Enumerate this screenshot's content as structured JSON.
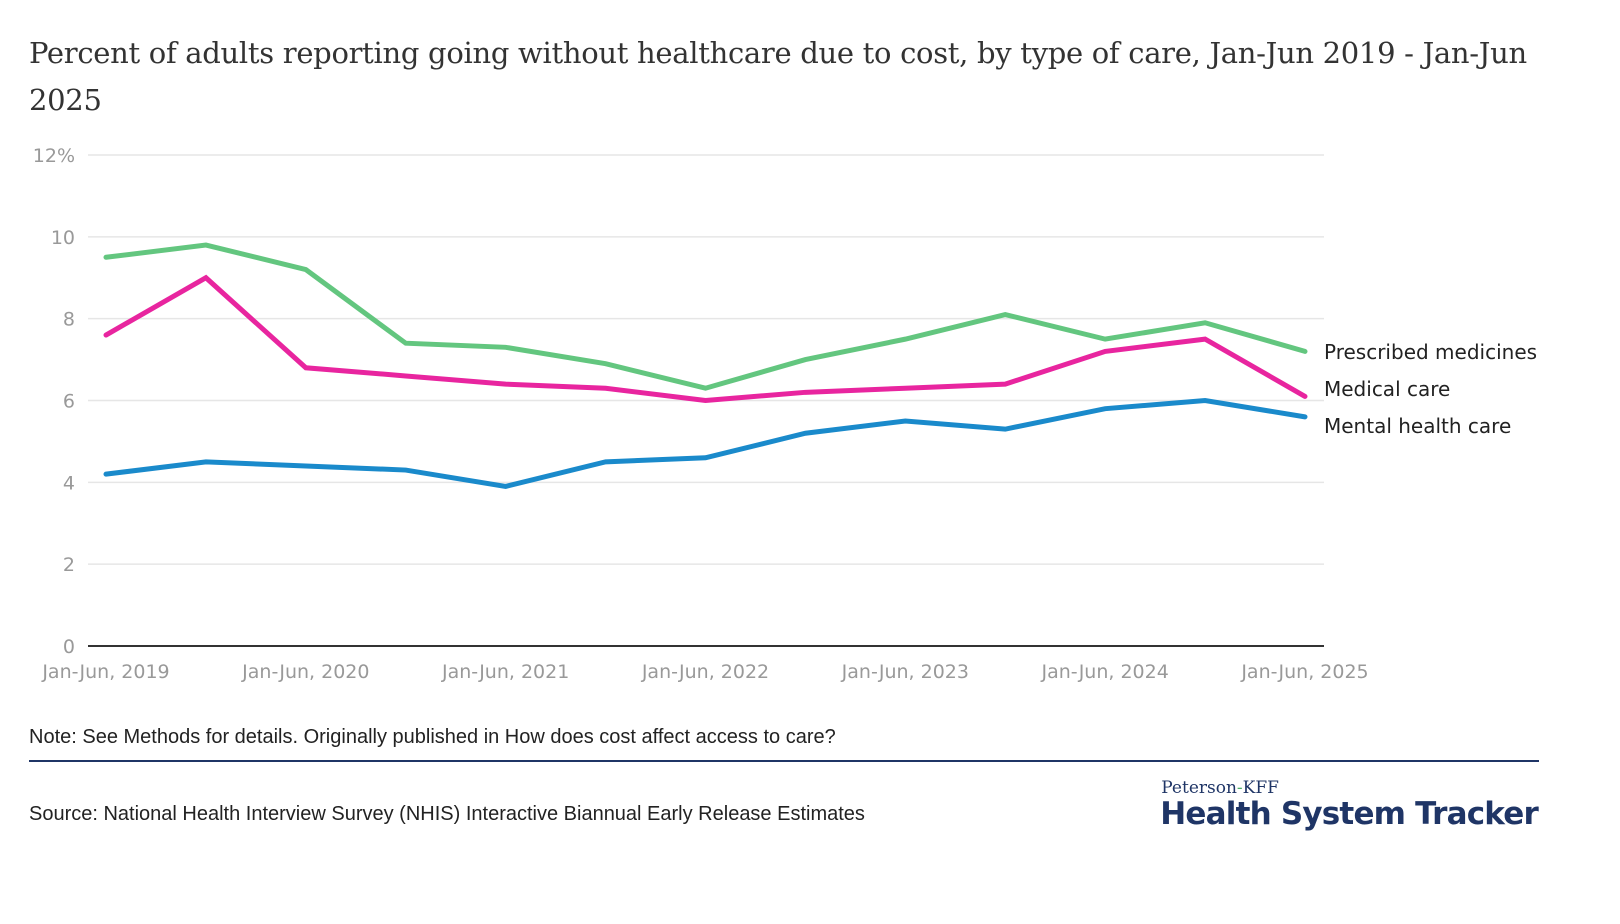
{
  "title": "Percent of adults reporting going without healthcare due to cost, by type of care, Jan-Jun 2019 - Jan-Jun 2025",
  "note": "Note: See Methods for details. Originally published in How does cost affect access to care?",
  "source": "Source: National Health Interview Survey (NHIS) Interactive Biannual Early Release Estimates",
  "logo": {
    "top_left": "Peterson",
    "dash": "-",
    "top_right": "KFF",
    "main": "Health System Tracker"
  },
  "colors": {
    "prescribed": "#63c67f",
    "medical": "#e8259f",
    "mental": "#1a8acb",
    "gridline": "#e6e6e6",
    "axis": "#333333",
    "tick_label": "#999999",
    "brand": "#1f3566"
  },
  "chart_data": {
    "type": "line",
    "title": "Percent of adults reporting going without healthcare due to cost, by type of care, Jan-Jun 2019 - Jan-Jun 2025",
    "xlabel": "",
    "ylabel": "",
    "ylim": [
      0,
      12
    ],
    "yticks": [
      0,
      2,
      4,
      6,
      8,
      10,
      12
    ],
    "ytick_labels": [
      "0",
      "2",
      "4",
      "6",
      "8",
      "10",
      "12%"
    ],
    "x": [
      "Jan-Jun, 2019",
      "Jul-Dec, 2019",
      "Jan-Jun, 2020",
      "Jul-Dec, 2020",
      "Jan-Jun, 2021",
      "Jul-Dec, 2021",
      "Jan-Jun, 2022",
      "Jul-Dec, 2022",
      "Jan-Jun, 2023",
      "Jul-Dec, 2023",
      "Jan-Jun, 2024",
      "Jul-Dec, 2024",
      "Jan-Jun, 2025"
    ],
    "xtick_labels": [
      "Jan-Jun, 2019",
      "Jan-Jun, 2020",
      "Jan-Jun, 2021",
      "Jan-Jun, 2022",
      "Jan-Jun, 2023",
      "Jan-Jun, 2024",
      "Jan-Jun, 2025"
    ],
    "xtick_indices": [
      0,
      2,
      4,
      6,
      8,
      10,
      12
    ],
    "grid": true,
    "legend": "right-end labels",
    "series": [
      {
        "name": "Prescribed medicines",
        "color": "#63c67f",
        "values": [
          9.5,
          9.8,
          9.2,
          7.4,
          7.3,
          6.9,
          6.3,
          7.0,
          7.5,
          8.1,
          7.5,
          7.9,
          7.2
        ]
      },
      {
        "name": "Medical care",
        "color": "#e8259f",
        "values": [
          7.6,
          9.0,
          6.8,
          6.6,
          6.4,
          6.3,
          6.0,
          6.2,
          6.3,
          6.4,
          7.2,
          7.5,
          6.1
        ]
      },
      {
        "name": "Mental health care",
        "color": "#1a8acb",
        "values": [
          4.2,
          4.5,
          4.4,
          4.3,
          3.9,
          4.5,
          4.6,
          5.2,
          5.5,
          5.3,
          5.8,
          6.0,
          5.6
        ]
      }
    ]
  }
}
